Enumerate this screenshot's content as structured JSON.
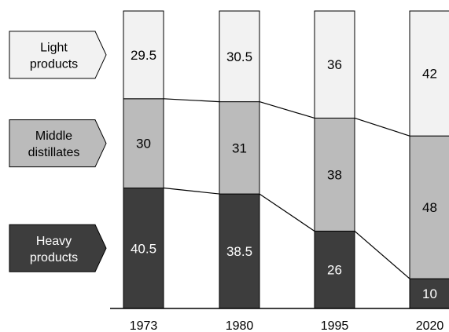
{
  "chart_data": {
    "type": "bar",
    "stacked": true,
    "normalized_percent": true,
    "categories": [
      "1973",
      "1980",
      "1995",
      "2020"
    ],
    "series": [
      {
        "name": "Heavy products",
        "name_lines": [
          "Heavy",
          "products"
        ],
        "values": [
          40.5,
          38.5,
          26,
          10
        ],
        "color": "#3d3d3d",
        "text_color": "#ffffff"
      },
      {
        "name": "Middle distillates",
        "name_lines": [
          "Middle",
          "distillates"
        ],
        "values": [
          30,
          31,
          38,
          48
        ],
        "color": "#bbbbbb",
        "text_color": "#000000"
      },
      {
        "name": "Light products",
        "name_lines": [
          "Light",
          "products"
        ],
        "values": [
          29.5,
          30.5,
          36,
          42
        ],
        "color": "#f2f2f2",
        "text_color": "#000000"
      }
    ],
    "ylim": [
      0,
      100
    ],
    "grid": false,
    "legend": "left",
    "connector_lines": true
  }
}
